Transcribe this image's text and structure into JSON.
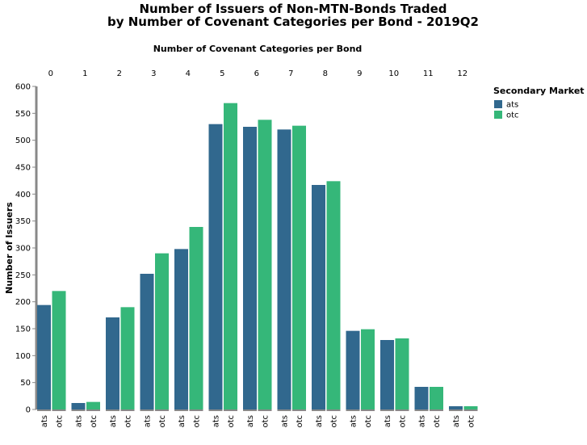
{
  "chart_data": {
    "type": "bar",
    "title": [
      "Number of Issuers of Non-MTN-Bonds Traded",
      "by Number of Covenant Categories per Bond - 2019Q2"
    ],
    "xlabel": "Number of Covenant Categories per Bond",
    "ylabel": "Number of Issuers",
    "ylim": [
      0,
      600
    ],
    "yticks": [
      0,
      50,
      100,
      150,
      200,
      250,
      300,
      350,
      400,
      450,
      500,
      550,
      600
    ],
    "categories": [
      "0",
      "1",
      "2",
      "3",
      "4",
      "5",
      "6",
      "7",
      "8",
      "9",
      "10",
      "11",
      "12"
    ],
    "subcategories": [
      "ats",
      "otc"
    ],
    "series": [
      {
        "name": "ats",
        "color": "#31688e",
        "values": [
          194,
          12,
          171,
          252,
          298,
          530,
          525,
          520,
          417,
          146,
          129,
          42,
          6
        ]
      },
      {
        "name": "otc",
        "color": "#35b779",
        "values": [
          220,
          14,
          190,
          290,
          339,
          569,
          538,
          527,
          424,
          149,
          132,
          42,
          6
        ]
      }
    ],
    "legend": {
      "title": "Secondary Market",
      "placement": "top-right"
    },
    "grid": false
  }
}
